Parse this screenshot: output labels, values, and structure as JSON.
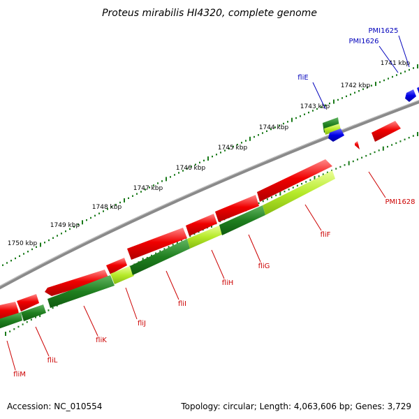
{
  "title": "Proteus mirabilis HI4320, complete genome",
  "footer": {
    "accession": "Accession: NC_010554",
    "summary": "Topology: circular; Length: 4,063,606 bp; Genes: 3,729"
  },
  "colors": {
    "forward_cds": "#e00000",
    "reverse_cds_dark": "#1a7a1a",
    "reverse_cds_light": "#b6ea2a",
    "blue_feature": "#0000e0",
    "backbone": "#888888",
    "tick": "#1a7a1a",
    "red_label": "#cc0000",
    "blue_label": "#0000bb"
  },
  "ruler_labels": [
    "1741 kbp",
    "1742 kbp",
    "1743 kbp",
    "1744 kbp",
    "1745 kbp",
    "1746 kbp",
    "1747 kbp",
    "1748 kbp",
    "1749 kbp",
    "1750 kbp"
  ],
  "gene_labels": [
    {
      "text": "PMI1625",
      "color": "blue"
    },
    {
      "text": "PMI1626",
      "color": "blue"
    },
    {
      "text": "fliE",
      "color": "blue"
    },
    {
      "text": "PMI1628",
      "color": "red"
    },
    {
      "text": "fliF",
      "color": "red"
    },
    {
      "text": "fliG",
      "color": "red"
    },
    {
      "text": "fliH",
      "color": "red"
    },
    {
      "text": "fliI",
      "color": "red"
    },
    {
      "text": "fliJ",
      "color": "red"
    },
    {
      "text": "fliK",
      "color": "red"
    },
    {
      "text": "fliL",
      "color": "red"
    },
    {
      "text": "fliM",
      "color": "red"
    }
  ]
}
